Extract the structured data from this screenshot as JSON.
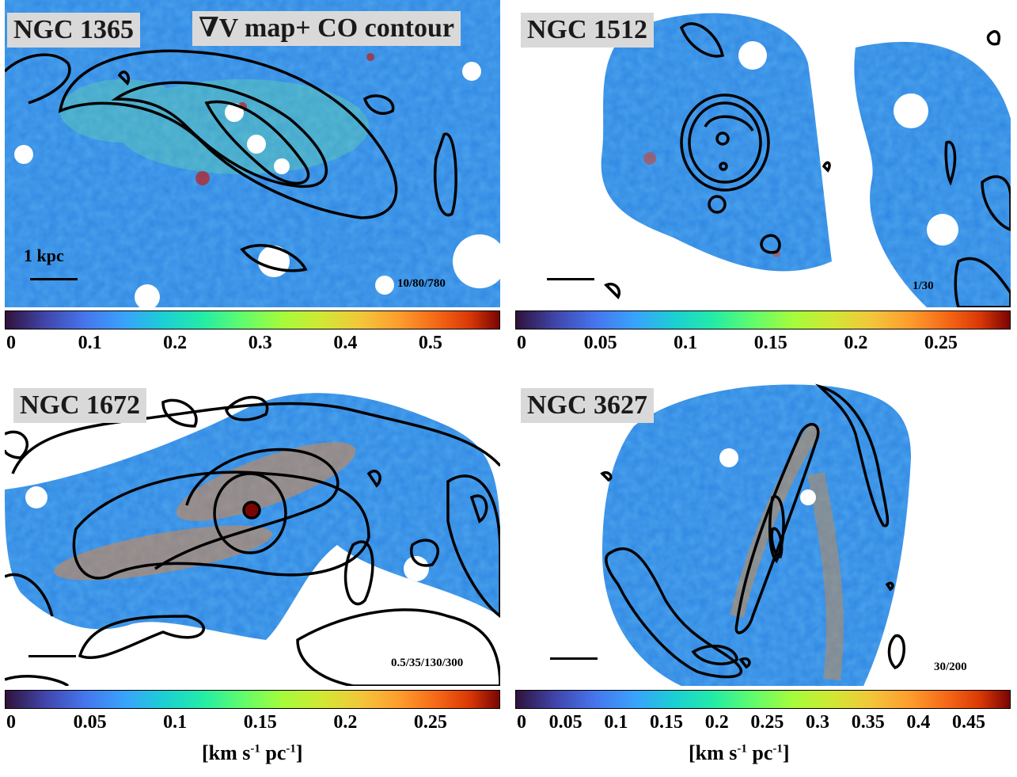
{
  "panels": [
    {
      "galaxy": "NGC 1365",
      "title": "∇V map+ CO contour",
      "scale_label": "1 kpc",
      "contour_levels": "10/80/780",
      "colorbar_ticks": [
        "0",
        "0.1",
        "0.2",
        "0.3",
        "0.4",
        "0.5"
      ],
      "colorbar_max": 0.58
    },
    {
      "galaxy": "NGC 1512",
      "contour_levels": "1/30",
      "colorbar_ticks": [
        "0",
        "0.05",
        "0.1",
        "0.15",
        "0.2",
        "0.25"
      ],
      "colorbar_max": 0.29
    },
    {
      "galaxy": "NGC 1672",
      "contour_levels": "0.5/35/130/300",
      "colorbar_ticks": [
        "0",
        "0.05",
        "0.1",
        "0.15",
        "0.2",
        "0.25"
      ],
      "colorbar_max": 0.29
    },
    {
      "galaxy": "NGC 3627",
      "contour_levels": "30/200",
      "colorbar_ticks": [
        "0",
        "0.05",
        "0.1",
        "0.15",
        "0.2",
        "0.25",
        "0.3",
        "0.35",
        "0.4",
        "0.45"
      ],
      "colorbar_max": 0.49
    }
  ],
  "unit_label": "[km s",
  "unit_exp1": "-1",
  "unit_mid": " pc",
  "unit_exp2": "-1",
  "unit_end": "]",
  "colormap": "turbo",
  "contour_color": "#000000",
  "label_box_color": "#d9d9d9"
}
